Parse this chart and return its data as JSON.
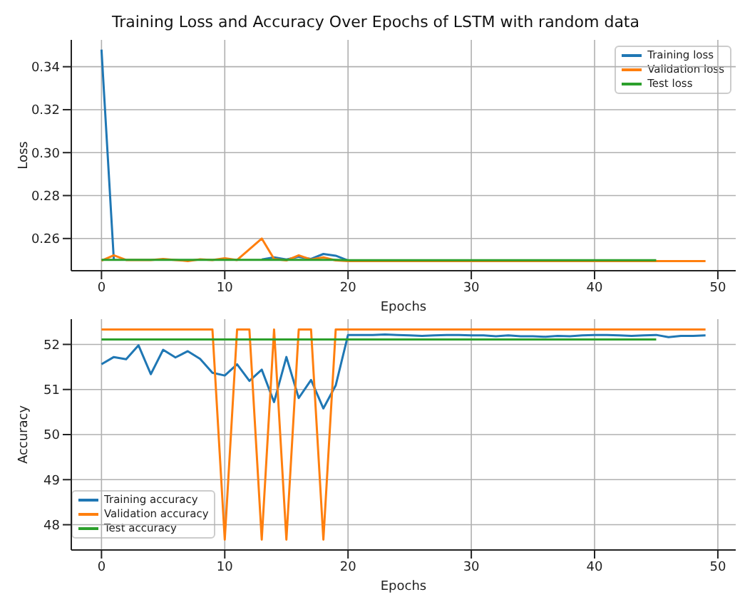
{
  "chart_data": [
    {
      "type": "line",
      "title": "Training Loss and Accuracy Over Epochs of LSTM with random data",
      "xlabel": "Epochs",
      "ylabel": "Loss",
      "xlim": [
        -2.45,
        51.45
      ],
      "xticks": [
        0,
        10,
        20,
        30,
        40,
        50
      ],
      "ylim": [
        0.245,
        0.3525
      ],
      "yticks": [
        0.26,
        0.28,
        {
          "value": 0.3,
          "label": "0.30"
        },
        0.32,
        0.34
      ],
      "grid": true,
      "legend": "top right",
      "line_style": "solid",
      "marker": "none",
      "series": [
        {
          "name": "Training loss",
          "color": "#1f77b4",
          "x": [
            0,
            1,
            2,
            3,
            4,
            5,
            6,
            7,
            8,
            9,
            10,
            11,
            12,
            13,
            14,
            15,
            16,
            17,
            18,
            19,
            20
          ],
          "values": [
            0.348,
            0.2502,
            null,
            null,
            null,
            null,
            null,
            null,
            null,
            null,
            null,
            null,
            null,
            0.2502,
            0.2512,
            0.2502,
            0.2515,
            0.2505,
            0.2528,
            0.252,
            0.2498
          ]
        },
        {
          "name": "Validation loss",
          "color": "#ff7f0e",
          "x": [
            0,
            1,
            2,
            3,
            4,
            5,
            6,
            7,
            8,
            9,
            10,
            11,
            12,
            13,
            14,
            15,
            16,
            17,
            18,
            19,
            20,
            21,
            22,
            23,
            24,
            25,
            26,
            27,
            28,
            29,
            30,
            31,
            32,
            33,
            34,
            35,
            36,
            37,
            38,
            39,
            40,
            41,
            42,
            43,
            44,
            45,
            46,
            47,
            48,
            49
          ],
          "values": [
            0.2497,
            0.2522,
            0.25,
            0.25,
            0.25,
            0.2505,
            0.25,
            0.2495,
            0.2503,
            0.25,
            0.2508,
            0.25,
            0.255,
            0.26,
            0.2505,
            0.2498,
            0.2522,
            0.2502,
            0.2512,
            0.2498,
            0.2495,
            0.2495,
            0.2495,
            0.2495,
            0.2495,
            0.2495,
            0.2495,
            0.2495,
            0.2495,
            0.2495,
            0.2495,
            0.2495,
            0.2495,
            0.2495,
            0.2495,
            0.2495,
            0.2495,
            0.2495,
            0.2495,
            0.2495,
            0.2495,
            0.2495,
            0.2495,
            0.2495,
            0.2495,
            0.2495,
            0.2495,
            0.2495,
            0.2495,
            0.2495
          ]
        },
        {
          "name": "Test loss",
          "color": "#2ca02c",
          "x": [
            0,
            1,
            2,
            3,
            4,
            5,
            6,
            7,
            8,
            9,
            10,
            11,
            12,
            13,
            14,
            15,
            16,
            17,
            18,
            19,
            20,
            21,
            22,
            23,
            24,
            25,
            26,
            27,
            28,
            29,
            30,
            31,
            32,
            33,
            34,
            35,
            36,
            37,
            38,
            39,
            40,
            41,
            42,
            43,
            44,
            45
          ],
          "values": [
            0.2501,
            0.2501,
            0.2501,
            0.2501,
            0.2501,
            0.2501,
            0.2501,
            0.2501,
            0.2501,
            0.2501,
            0.2501,
            0.2501,
            0.2501,
            0.2501,
            0.2501,
            0.2501,
            0.2501,
            0.2501,
            0.2501,
            0.2501,
            0.2499,
            0.2499,
            0.2499,
            0.2499,
            0.2499,
            0.2499,
            0.2499,
            0.2499,
            0.2499,
            0.2499,
            0.2499,
            0.2499,
            0.2499,
            0.2499,
            0.2499,
            0.2499,
            0.2499,
            0.2499,
            0.2499,
            0.2499,
            0.2499,
            0.2499,
            0.2499,
            0.2499,
            0.2499,
            0.2499
          ]
        }
      ]
    },
    {
      "type": "line",
      "xlabel": "Epochs",
      "ylabel": "Accuracy",
      "xlim": [
        -2.45,
        51.45
      ],
      "xticks": [
        0,
        10,
        20,
        30,
        40,
        50
      ],
      "ylim": [
        47.44,
        52.56
      ],
      "yticks": [
        48,
        49,
        50,
        51,
        52
      ],
      "grid": true,
      "legend": "bottom left",
      "line_style": "solid",
      "marker": "none",
      "series": [
        {
          "name": "Training accuracy",
          "color": "#1f77b4",
          "x": [
            0,
            1,
            2,
            3,
            4,
            5,
            6,
            7,
            8,
            9,
            10,
            11,
            12,
            13,
            14,
            15,
            16,
            17,
            18,
            19,
            20,
            21,
            22,
            23,
            24,
            25,
            26,
            27,
            28,
            29,
            30,
            31,
            32,
            33,
            34,
            35,
            36,
            37,
            38,
            39,
            40,
            41,
            42,
            43,
            44,
            45,
            46,
            47,
            48,
            49
          ],
          "values": [
            51.56,
            51.72,
            51.67,
            51.98,
            51.34,
            51.88,
            51.71,
            51.85,
            51.68,
            51.37,
            51.31,
            51.56,
            51.19,
            51.44,
            50.72,
            51.72,
            50.81,
            51.21,
            50.58,
            51.09,
            52.21,
            52.21,
            52.21,
            52.22,
            52.21,
            52.2,
            52.19,
            52.2,
            52.21,
            52.21,
            52.2,
            52.2,
            52.18,
            52.2,
            52.18,
            52.18,
            52.17,
            52.19,
            52.18,
            52.2,
            52.21,
            52.21,
            52.2,
            52.19,
            52.2,
            52.21,
            52.16,
            52.19,
            52.19,
            52.2
          ]
        },
        {
          "name": "Validation accuracy",
          "color": "#ff7f0e",
          "x": [
            0,
            1,
            2,
            3,
            4,
            5,
            6,
            7,
            8,
            9,
            10,
            11,
            12,
            13,
            14,
            15,
            16,
            17,
            18,
            19,
            20,
            21,
            22,
            23,
            24,
            25,
            26,
            27,
            28,
            29,
            30,
            31,
            32,
            33,
            34,
            35,
            36,
            37,
            38,
            39,
            40,
            41,
            42,
            43,
            44,
            45,
            46,
            47,
            48,
            49
          ],
          "values": [
            52.33,
            52.33,
            52.33,
            52.33,
            52.33,
            52.33,
            52.33,
            52.33,
            52.33,
            52.33,
            47.67,
            52.33,
            52.33,
            47.67,
            52.33,
            47.67,
            52.33,
            52.33,
            47.67,
            52.33,
            52.33,
            52.33,
            52.33,
            52.33,
            52.33,
            52.33,
            52.33,
            52.33,
            52.33,
            52.33,
            52.33,
            52.33,
            52.33,
            52.33,
            52.33,
            52.33,
            52.33,
            52.33,
            52.33,
            52.33,
            52.33,
            52.33,
            52.33,
            52.33,
            52.33,
            52.33,
            52.33,
            52.33,
            52.33,
            52.33
          ]
        },
        {
          "name": "Test accuracy",
          "color": "#2ca02c",
          "x": [
            0,
            1,
            2,
            3,
            4,
            5,
            6,
            7,
            8,
            9,
            10,
            11,
            12,
            13,
            14,
            15,
            16,
            17,
            18,
            19,
            20,
            21,
            22,
            23,
            24,
            25,
            26,
            27,
            28,
            29,
            30,
            31,
            32,
            33,
            34,
            35,
            36,
            37,
            38,
            39,
            40,
            41,
            42,
            43,
            44,
            45
          ],
          "values": [
            52.11,
            52.11,
            52.11,
            52.11,
            52.11,
            52.11,
            52.11,
            52.11,
            52.11,
            52.11,
            52.11,
            52.11,
            52.11,
            52.11,
            52.11,
            52.11,
            52.11,
            52.11,
            52.11,
            52.11,
            52.11,
            52.11,
            52.11,
            52.11,
            52.11,
            52.11,
            52.11,
            52.11,
            52.11,
            52.11,
            52.11,
            52.11,
            52.11,
            52.11,
            52.11,
            52.11,
            52.11,
            52.11,
            52.11,
            52.11,
            52.11,
            52.11,
            52.11,
            52.11,
            52.11,
            52.11
          ]
        }
      ]
    }
  ]
}
